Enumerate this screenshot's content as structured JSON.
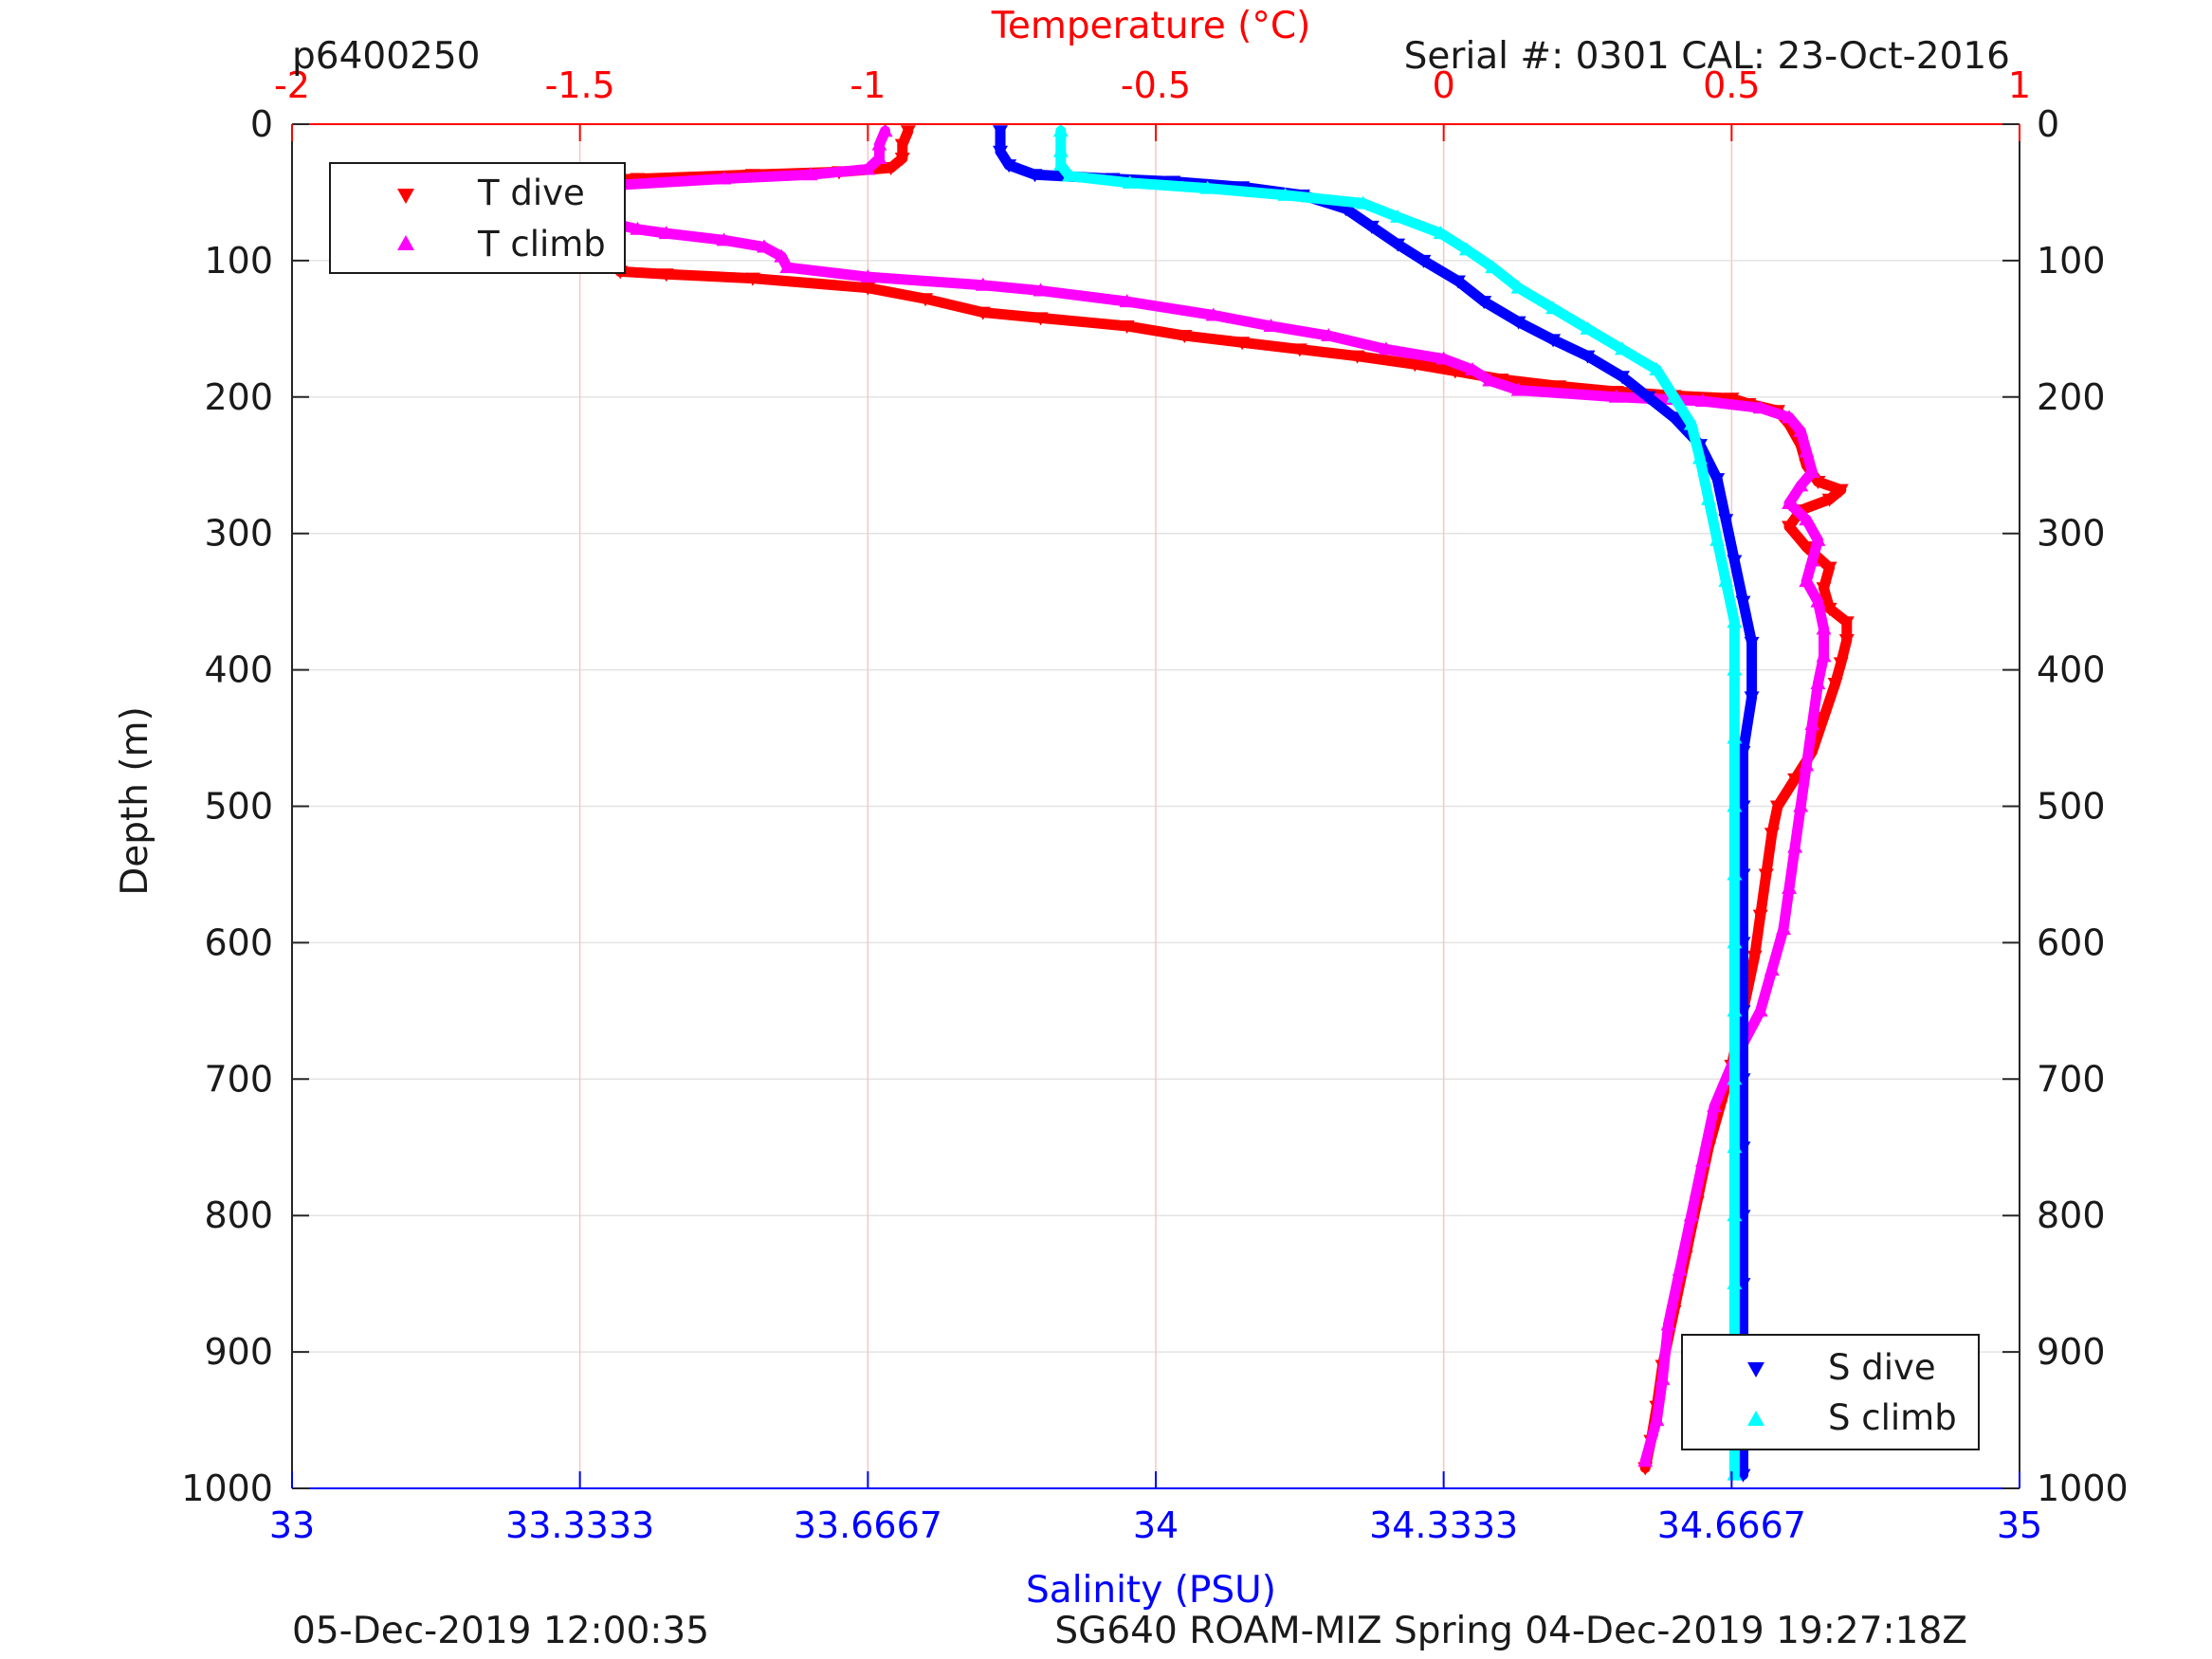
{
  "header": {
    "left": "p6400250",
    "right": "Serial #: 0301  CAL: 23-Oct-2016"
  },
  "footer": {
    "left": "05-Dec-2019 12:00:35",
    "right": "SG640 ROAM-MIZ Spring 04-Dec-2019 19:27:18Z"
  },
  "colors": {
    "temperature_axis": "#ff0000",
    "salinity_axis": "#0000ff",
    "t_dive": "#ff0000",
    "t_climb": "#ff00ff",
    "s_dive": "#0000ff",
    "s_climb": "#00ffff",
    "grid": "#f2c8c8"
  },
  "chart_data": {
    "type": "scatter",
    "y_axis": {
      "label": "Depth (m)",
      "range": [
        0,
        1000
      ],
      "reversed": true,
      "ticks": [
        "0",
        "100",
        "200",
        "300",
        "400",
        "500",
        "600",
        "700",
        "800",
        "900",
        "1000"
      ],
      "tick_values": [
        0,
        100,
        200,
        300,
        400,
        500,
        600,
        700,
        800,
        900,
        1000
      ]
    },
    "x_top_axis": {
      "label": "Temperature (°C)",
      "range": [
        -2,
        1
      ],
      "ticks": [
        "-2",
        "-1.5",
        "-1",
        "-0.5",
        "0",
        "0.5",
        "1"
      ],
      "tick_values": [
        -2,
        -1.5,
        -1,
        -0.5,
        0,
        0.5,
        1
      ]
    },
    "x_bottom_axis": {
      "label": "Salinity (PSU)",
      "range": [
        33,
        35
      ],
      "ticks": [
        "33",
        "33.3333",
        "33.6667",
        "34",
        "34.3333",
        "34.6667",
        "35"
      ],
      "tick_values": [
        33,
        33.3333,
        33.6667,
        34,
        34.3333,
        34.6667,
        35
      ]
    },
    "grid": true,
    "legends": [
      {
        "placement": "top-left",
        "entries": [
          "T dive",
          "T climb"
        ]
      },
      {
        "placement": "bottom-right",
        "entries": [
          "S dive",
          "S climb"
        ]
      }
    ],
    "series": [
      {
        "name": "T dive",
        "axis": "temperature",
        "marker": "triangle-down",
        "points": [
          [
            -0.93,
            5
          ],
          [
            -0.94,
            15
          ],
          [
            -0.94,
            25
          ],
          [
            -0.96,
            32
          ],
          [
            -1.05,
            35
          ],
          [
            -1.2,
            37
          ],
          [
            -1.4,
            40
          ],
          [
            -1.55,
            42
          ],
          [
            -1.6,
            45
          ],
          [
            -1.63,
            50
          ],
          [
            -1.65,
            60
          ],
          [
            -1.67,
            68
          ],
          [
            -1.66,
            72
          ],
          [
            -1.58,
            78
          ],
          [
            -1.5,
            83
          ],
          [
            -1.46,
            88
          ],
          [
            -1.45,
            95
          ],
          [
            -1.44,
            102
          ],
          [
            -1.43,
            108
          ],
          [
            -1.35,
            110
          ],
          [
            -1.2,
            113
          ],
          [
            -1.0,
            120
          ],
          [
            -0.9,
            128
          ],
          [
            -0.8,
            138
          ],
          [
            -0.7,
            142
          ],
          [
            -0.55,
            148
          ],
          [
            -0.45,
            155
          ],
          [
            -0.35,
            160
          ],
          [
            -0.25,
            165
          ],
          [
            -0.15,
            170
          ],
          [
            -0.05,
            176
          ],
          [
            0.02,
            181
          ],
          [
            0.1,
            187
          ],
          [
            0.2,
            192
          ],
          [
            0.3,
            196
          ],
          [
            0.4,
            199
          ],
          [
            0.5,
            201
          ],
          [
            0.53,
            205
          ],
          [
            0.58,
            210
          ],
          [
            0.6,
            220
          ],
          [
            0.62,
            235
          ],
          [
            0.63,
            250
          ],
          [
            0.65,
            262
          ],
          [
            0.69,
            268
          ],
          [
            0.67,
            275
          ],
          [
            0.62,
            283
          ],
          [
            0.6,
            295
          ],
          [
            0.63,
            310
          ],
          [
            0.67,
            325
          ],
          [
            0.66,
            340
          ],
          [
            0.67,
            355
          ],
          [
            0.7,
            365
          ],
          [
            0.7,
            378
          ],
          [
            0.69,
            395
          ],
          [
            0.68,
            410
          ],
          [
            0.66,
            435
          ],
          [
            0.64,
            460
          ],
          [
            0.61,
            480
          ],
          [
            0.58,
            500
          ],
          [
            0.57,
            520
          ],
          [
            0.56,
            550
          ],
          [
            0.55,
            580
          ],
          [
            0.54,
            610
          ],
          [
            0.52,
            650
          ],
          [
            0.5,
            690
          ],
          [
            0.48,
            720
          ],
          [
            0.46,
            750
          ],
          [
            0.44,
            790
          ],
          [
            0.42,
            830
          ],
          [
            0.4,
            870
          ],
          [
            0.38,
            910
          ],
          [
            0.37,
            940
          ],
          [
            0.36,
            965
          ],
          [
            0.35,
            985
          ]
        ]
      },
      {
        "name": "T climb",
        "axis": "temperature",
        "marker": "triangle-up",
        "points": [
          [
            -0.97,
            5
          ],
          [
            -0.98,
            15
          ],
          [
            -0.98,
            25
          ],
          [
            -1.0,
            33
          ],
          [
            -1.1,
            37
          ],
          [
            -1.25,
            40
          ],
          [
            -1.45,
            45
          ],
          [
            -1.5,
            50
          ],
          [
            -1.53,
            55
          ],
          [
            -1.5,
            65
          ],
          [
            -1.45,
            72
          ],
          [
            -1.4,
            77
          ],
          [
            -1.35,
            80
          ],
          [
            -1.25,
            85
          ],
          [
            -1.18,
            90
          ],
          [
            -1.15,
            97
          ],
          [
            -1.14,
            105
          ],
          [
            -1.0,
            112
          ],
          [
            -0.8,
            118
          ],
          [
            -0.7,
            122
          ],
          [
            -0.55,
            130
          ],
          [
            -0.4,
            140
          ],
          [
            -0.3,
            148
          ],
          [
            -0.2,
            155
          ],
          [
            -0.1,
            165
          ],
          [
            0.0,
            172
          ],
          [
            0.05,
            180
          ],
          [
            0.08,
            188
          ],
          [
            0.13,
            195
          ],
          [
            0.3,
            200
          ],
          [
            0.45,
            203
          ],
          [
            0.55,
            208
          ],
          [
            0.6,
            215
          ],
          [
            0.62,
            225
          ],
          [
            0.63,
            240
          ],
          [
            0.64,
            255
          ],
          [
            0.62,
            265
          ],
          [
            0.6,
            278
          ],
          [
            0.63,
            290
          ],
          [
            0.65,
            305
          ],
          [
            0.64,
            320
          ],
          [
            0.63,
            335
          ],
          [
            0.65,
            350
          ],
          [
            0.66,
            370
          ],
          [
            0.66,
            390
          ],
          [
            0.65,
            410
          ],
          [
            0.64,
            440
          ],
          [
            0.63,
            470
          ],
          [
            0.62,
            500
          ],
          [
            0.61,
            530
          ],
          [
            0.6,
            560
          ],
          [
            0.59,
            590
          ],
          [
            0.57,
            620
          ],
          [
            0.55,
            650
          ],
          [
            0.5,
            690
          ],
          [
            0.47,
            720
          ],
          [
            0.45,
            760
          ],
          [
            0.43,
            800
          ],
          [
            0.41,
            840
          ],
          [
            0.39,
            880
          ],
          [
            0.38,
            920
          ],
          [
            0.37,
            950
          ],
          [
            0.35,
            980
          ]
        ]
      },
      {
        "name": "S dive",
        "axis": "salinity",
        "marker": "triangle-down",
        "points": [
          [
            33.82,
            5
          ],
          [
            33.82,
            20
          ],
          [
            33.83,
            30
          ],
          [
            33.86,
            37
          ],
          [
            33.95,
            40
          ],
          [
            34.02,
            42
          ],
          [
            34.1,
            46
          ],
          [
            34.17,
            52
          ],
          [
            34.22,
            62
          ],
          [
            34.25,
            75
          ],
          [
            34.28,
            88
          ],
          [
            34.31,
            100
          ],
          [
            34.35,
            115
          ],
          [
            34.38,
            130
          ],
          [
            34.42,
            145
          ],
          [
            34.46,
            158
          ],
          [
            34.5,
            170
          ],
          [
            34.54,
            185
          ],
          [
            34.57,
            200
          ],
          [
            34.6,
            215
          ],
          [
            34.63,
            235
          ],
          [
            34.65,
            260
          ],
          [
            34.66,
            290
          ],
          [
            34.67,
            320
          ],
          [
            34.68,
            350
          ],
          [
            34.69,
            380
          ],
          [
            34.69,
            420
          ],
          [
            34.68,
            460
          ],
          [
            34.68,
            500
          ],
          [
            34.68,
            550
          ],
          [
            34.68,
            600
          ],
          [
            34.68,
            650
          ],
          [
            34.68,
            700
          ],
          [
            34.68,
            750
          ],
          [
            34.68,
            800
          ],
          [
            34.68,
            850
          ],
          [
            34.68,
            900
          ],
          [
            34.68,
            950
          ],
          [
            34.68,
            990
          ]
        ]
      },
      {
        "name": "S climb",
        "axis": "salinity",
        "marker": "triangle-up",
        "points": [
          [
            33.89,
            5
          ],
          [
            33.89,
            20
          ],
          [
            33.89,
            30
          ],
          [
            33.9,
            38
          ],
          [
            33.97,
            43
          ],
          [
            34.06,
            47
          ],
          [
            34.15,
            52
          ],
          [
            34.24,
            58
          ],
          [
            34.28,
            68
          ],
          [
            34.33,
            80
          ],
          [
            34.36,
            92
          ],
          [
            34.39,
            105
          ],
          [
            34.42,
            120
          ],
          [
            34.46,
            135
          ],
          [
            34.5,
            150
          ],
          [
            34.54,
            165
          ],
          [
            34.58,
            180
          ],
          [
            34.6,
            200
          ],
          [
            34.62,
            220
          ],
          [
            34.63,
            245
          ],
          [
            34.64,
            275
          ],
          [
            34.65,
            305
          ],
          [
            34.66,
            335
          ],
          [
            34.67,
            365
          ],
          [
            34.67,
            400
          ],
          [
            34.67,
            450
          ],
          [
            34.67,
            500
          ],
          [
            34.67,
            550
          ],
          [
            34.67,
            600
          ],
          [
            34.67,
            650
          ],
          [
            34.67,
            700
          ],
          [
            34.67,
            750
          ],
          [
            34.67,
            800
          ],
          [
            34.67,
            850
          ],
          [
            34.67,
            900
          ],
          [
            34.67,
            950
          ],
          [
            34.67,
            990
          ]
        ]
      }
    ]
  }
}
